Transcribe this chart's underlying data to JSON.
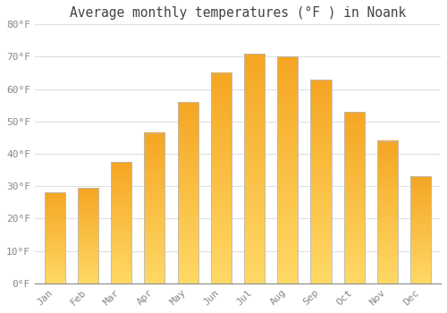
{
  "title": "Average monthly temperatures (°F ) in Noank",
  "months": [
    "Jan",
    "Feb",
    "Mar",
    "Apr",
    "May",
    "Jun",
    "Jul",
    "Aug",
    "Sep",
    "Oct",
    "Nov",
    "Dec"
  ],
  "values": [
    28,
    29.5,
    37.5,
    46.5,
    56,
    65,
    71,
    70,
    63,
    53,
    44,
    33
  ],
  "bar_color_top": "#F5A623",
  "bar_color_bottom": "#FFD966",
  "bar_border_color": "#BBBBBB",
  "ylim": [
    0,
    80
  ],
  "yticks": [
    0,
    10,
    20,
    30,
    40,
    50,
    60,
    70,
    80
  ],
  "ytick_labels": [
    "0°F",
    "10°F",
    "20°F",
    "30°F",
    "40°F",
    "50°F",
    "60°F",
    "70°F",
    "80°F"
  ],
  "background_color": "#FFFFFF",
  "grid_color": "#E0E0E0",
  "title_fontsize": 10.5,
  "tick_fontsize": 8,
  "title_color": "#444444",
  "tick_color": "#888888",
  "bar_width": 0.62,
  "figsize": [
    5.0,
    3.5
  ],
  "dpi": 100
}
